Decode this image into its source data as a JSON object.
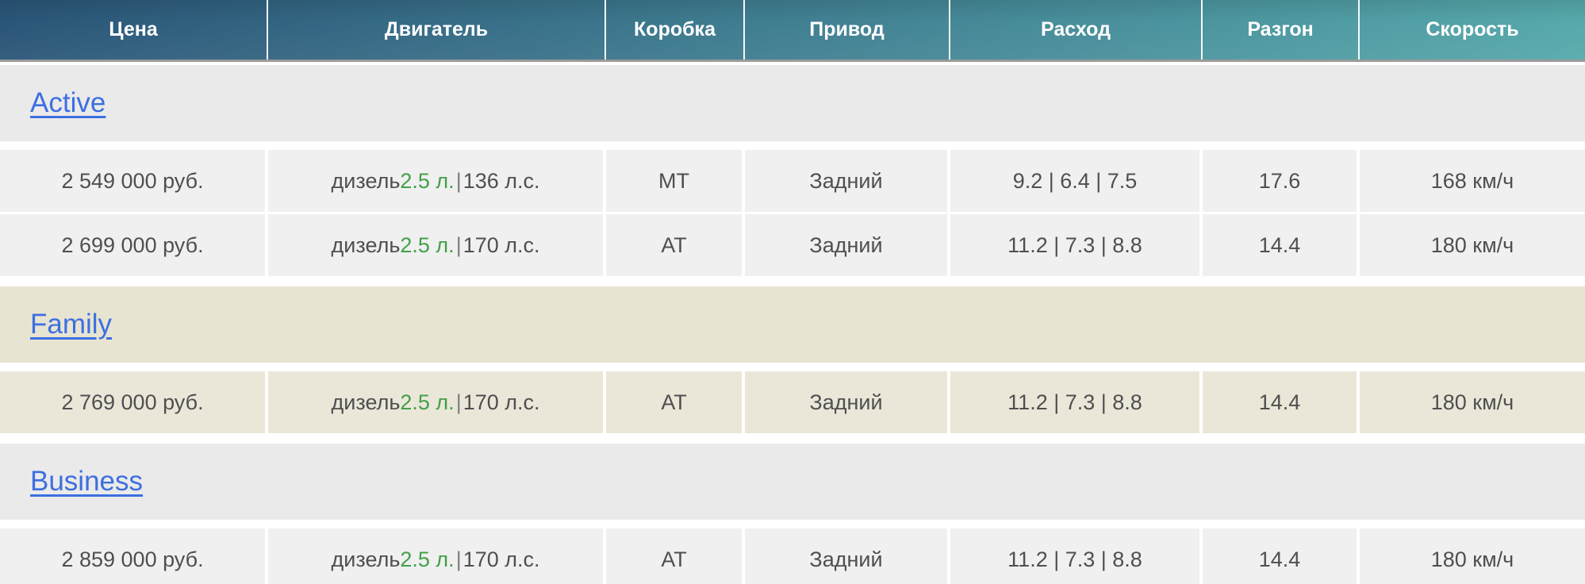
{
  "colors": {
    "header-gradient-left": "#2a5578",
    "header-gradient-right": "#56a9ab",
    "header-text": "#ffffff",
    "link-blue": "#3d6fe0",
    "engine-volume-green": "#43a047",
    "cell-text": "#4f4f4f",
    "gray-section-bg": "#eaeaea",
    "gray-row-bg": "#f0f0f0",
    "beige-section-bg": "#e8e4d2",
    "beige-row-bg": "#eae7d9",
    "header-border": "#9b9b9b"
  },
  "table": {
    "divider": "|",
    "columns": [
      "Цена",
      "Двигатель",
      "Коробка",
      "Привод",
      "Расход",
      "Разгон",
      "Скорость"
    ],
    "sections": [
      {
        "name": "Active",
        "rows": [
          {
            "price": "2 549 000 руб.",
            "engine": {
              "type": "дизель",
              "volume": "2.5 л.",
              "power": "136 л.с."
            },
            "gearbox": "МТ",
            "drive": "Задний",
            "consumption": "9.2 | 6.4 | 7.5",
            "acceleration": "17.6",
            "speed": "168 км/ч"
          },
          {
            "price": "2 699 000 руб.",
            "engine": {
              "type": "дизель",
              "volume": "2.5 л.",
              "power": "170 л.с."
            },
            "gearbox": "АТ",
            "drive": "Задний",
            "consumption": "11.2 | 7.3 | 8.8",
            "acceleration": "14.4",
            "speed": "180 км/ч"
          }
        ]
      },
      {
        "name": "Family",
        "rows": [
          {
            "price": "2 769 000 руб.",
            "engine": {
              "type": "дизель",
              "volume": "2.5 л.",
              "power": "170 л.с."
            },
            "gearbox": "АТ",
            "drive": "Задний",
            "consumption": "11.2 | 7.3 | 8.8",
            "acceleration": "14.4",
            "speed": "180 км/ч"
          }
        ]
      },
      {
        "name": "Business",
        "rows": [
          {
            "price": "2 859 000 руб.",
            "engine": {
              "type": "дизель",
              "volume": "2.5 л.",
              "power": "170 л.с."
            },
            "gearbox": "АТ",
            "drive": "Задний",
            "consumption": "11.2 | 7.3 | 8.8",
            "acceleration": "14.4",
            "speed": "180 км/ч"
          }
        ]
      }
    ]
  }
}
